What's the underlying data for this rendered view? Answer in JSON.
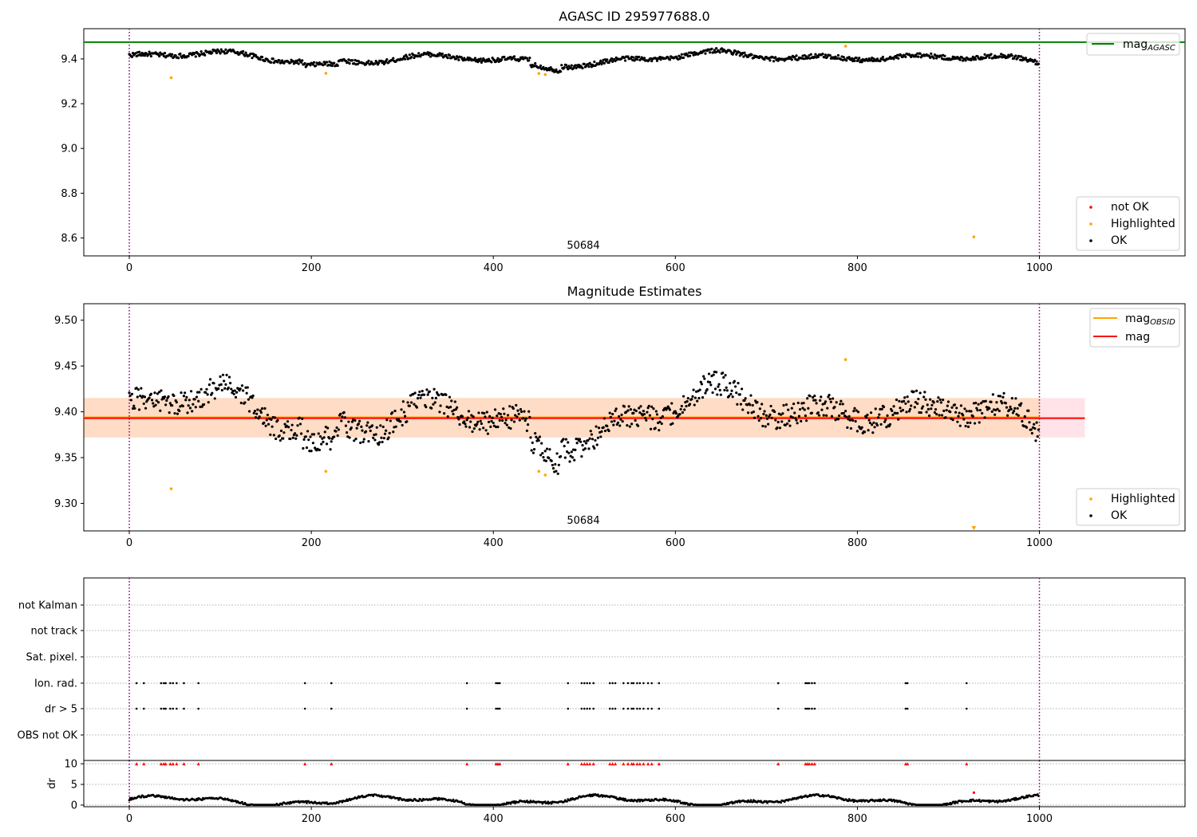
{
  "chart_data": [
    {
      "type": "scatter",
      "title": "AGASC ID 295977688.0",
      "annotation": "50684",
      "xlim": [
        -50,
        1160
      ],
      "ylim": [
        8.52,
        9.535
      ],
      "xticks": [
        "0",
        "200",
        "400",
        "600",
        "800",
        "1000"
      ],
      "yticks": [
        "8.6",
        "8.8",
        "9.0",
        "9.2",
        "9.4"
      ],
      "vlines": [
        0,
        1000
      ],
      "hlines": [
        {
          "name": "mag_AGASC",
          "y": 9.475,
          "color": "#008000"
        }
      ],
      "series": [
        {
          "name": "not OK",
          "color": "#ff0000",
          "points": []
        },
        {
          "name": "Highlighted",
          "color": "#ffa500",
          "points": [
            [
              46,
              9.316
            ],
            [
              216,
              9.336
            ],
            [
              450,
              9.335
            ],
            [
              457,
              9.33
            ],
            [
              787,
              9.457
            ],
            [
              928,
              8.605
            ]
          ]
        },
        {
          "name": "OK",
          "color": "#000000",
          "trend": "mag-walk",
          "xrange": [
            0,
            999
          ]
        }
      ],
      "legend": [
        {
          "label": "mag",
          "sub": "AGASC",
          "kind": "line",
          "color": "#008000",
          "position": "top-right"
        },
        {
          "label": "not OK",
          "kind": "dot",
          "color": "#ff0000",
          "position": "bottom-right"
        },
        {
          "label": "Highlighted",
          "kind": "dot",
          "color": "#ffa500",
          "position": "bottom-right"
        },
        {
          "label": "OK",
          "kind": "dot",
          "color": "#000000",
          "position": "bottom-right"
        }
      ]
    },
    {
      "type": "scatter",
      "title": "Magnitude Estimates",
      "annotation": "50684",
      "xlim": [
        -50,
        1160
      ],
      "ylim": [
        9.27,
        9.518
      ],
      "xticks": [
        "0",
        "200",
        "400",
        "600",
        "800",
        "1000"
      ],
      "yticks": [
        "9.30",
        "9.35",
        "9.40",
        "9.45",
        "9.50"
      ],
      "vlines": [
        0,
        1000
      ],
      "bands": [
        {
          "y": [
            9.372,
            9.415
          ],
          "x": [
            -50,
            1050
          ],
          "color": "#ffc0cb"
        },
        {
          "y": [
            9.372,
            9.415
          ],
          "x": [
            -50,
            1000
          ],
          "color": "#ffdab9"
        }
      ],
      "hlines": [
        {
          "name": "mag_OBSID",
          "y": 9.394,
          "x": [
            -50,
            1000
          ],
          "color": "#ffa500"
        },
        {
          "name": "mag",
          "y": 9.393,
          "x": [
            -50,
            1050
          ],
          "color": "#ff0000"
        }
      ],
      "series": [
        {
          "name": "Highlighted",
          "color": "#ffa500",
          "points": [
            [
              46,
              9.316
            ],
            [
              216,
              9.335
            ],
            [
              450,
              9.335
            ],
            [
              457,
              9.331
            ],
            [
              787,
              9.457
            ],
            [
              928,
              9.272
            ]
          ]
        },
        {
          "name": "OK",
          "color": "#000000",
          "trend": "mag-walk",
          "xrange": [
            0,
            999
          ]
        }
      ],
      "legend": [
        {
          "label": "mag",
          "sub": "OBSID",
          "kind": "line",
          "color": "#ffa500",
          "position": "top-right"
        },
        {
          "label": "mag",
          "kind": "line",
          "color": "#ff0000",
          "position": "top-right"
        },
        {
          "label": "Highlighted",
          "kind": "dot",
          "color": "#ffa500",
          "position": "bottom-right"
        },
        {
          "label": "OK",
          "kind": "dot",
          "color": "#000000",
          "position": "bottom-right"
        }
      ]
    },
    {
      "type": "scatter",
      "title": "",
      "xlim": [
        -50,
        1160
      ],
      "categories": [
        "not Kalman",
        "not track",
        "Sat. pixel.",
        "Ion. rad.",
        "dr > 5",
        "OBS not OK"
      ],
      "vlines": [
        0,
        1000
      ],
      "flag_x": [
        8,
        16,
        35,
        38,
        40,
        45,
        48,
        52,
        60,
        76,
        193,
        222,
        371,
        403,
        405,
        407,
        482,
        497,
        500,
        503,
        506,
        510,
        528,
        531,
        534,
        543,
        548,
        552,
        554,
        558,
        561,
        565,
        570,
        574,
        582,
        713,
        743,
        745,
        747,
        750,
        753,
        853,
        855,
        920
      ],
      "flags": {
        "not Kalman": [],
        "not track": [],
        "Sat. pixel.": [],
        "Ion. rad.": "flag_x",
        "dr > 5": "flag_x",
        "OBS not OK": []
      }
    },
    {
      "type": "scatter",
      "title": "",
      "ylabel": "dr",
      "xlim": [
        -50,
        1160
      ],
      "ylim": [
        -0.4,
        10.8
      ],
      "xticks": [
        "0",
        "200",
        "400",
        "600",
        "800",
        "1000"
      ],
      "yticks": [
        "0",
        "5",
        "10"
      ],
      "vlines": [
        0,
        1000
      ],
      "clip_marker_y": 10,
      "outlier": [
        [
          928,
          3.0
        ]
      ],
      "series": [
        {
          "name": "dr",
          "color": "#000000",
          "trend": "dr-waves",
          "xrange": [
            0,
            999
          ]
        }
      ]
    }
  ]
}
